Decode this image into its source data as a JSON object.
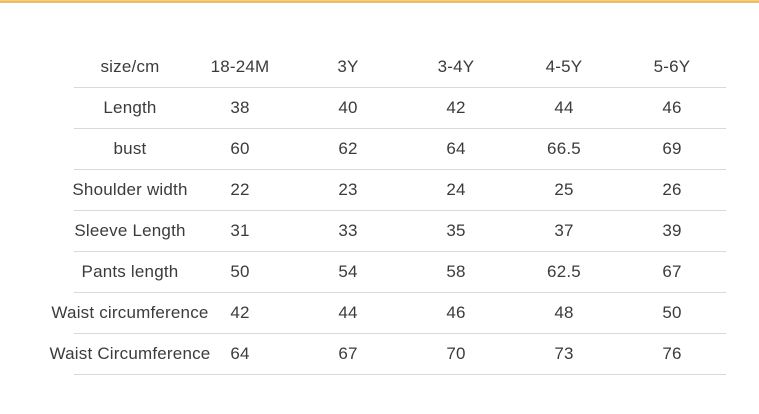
{
  "page": {
    "background_color": "#ffffff",
    "accent_bar_color": "#edb24e",
    "grid_line_color": "#d9d9d9",
    "text_color": "#3b3b3b"
  },
  "chart_data": {
    "type": "table",
    "columns": [
      "size/cm",
      "18-24M",
      "3Y",
      "3-4Y",
      "4-5Y",
      "5-6Y"
    ],
    "rows": [
      {
        "label": "Length",
        "values": [
          "38",
          "40",
          "42",
          "44",
          "46"
        ]
      },
      {
        "label": "bust",
        "values": [
          "60",
          "62",
          "64",
          "66.5",
          "69"
        ]
      },
      {
        "label": "Shoulder width",
        "values": [
          "22",
          "23",
          "24",
          "25",
          "26"
        ]
      },
      {
        "label": "Sleeve Length",
        "values": [
          "31",
          "33",
          "35",
          "37",
          "39"
        ]
      },
      {
        "label": "Pants length",
        "values": [
          "50",
          "54",
          "58",
          "62.5",
          "67"
        ]
      },
      {
        "label": "Waist circumference",
        "values": [
          "42",
          "44",
          "46",
          "48",
          "50"
        ]
      },
      {
        "label": "Waist Circumference",
        "values": [
          "64",
          "67",
          "70",
          "73",
          "76"
        ]
      }
    ],
    "layout": {
      "grid": "horizontal-rules-only",
      "header_position": "top"
    }
  }
}
